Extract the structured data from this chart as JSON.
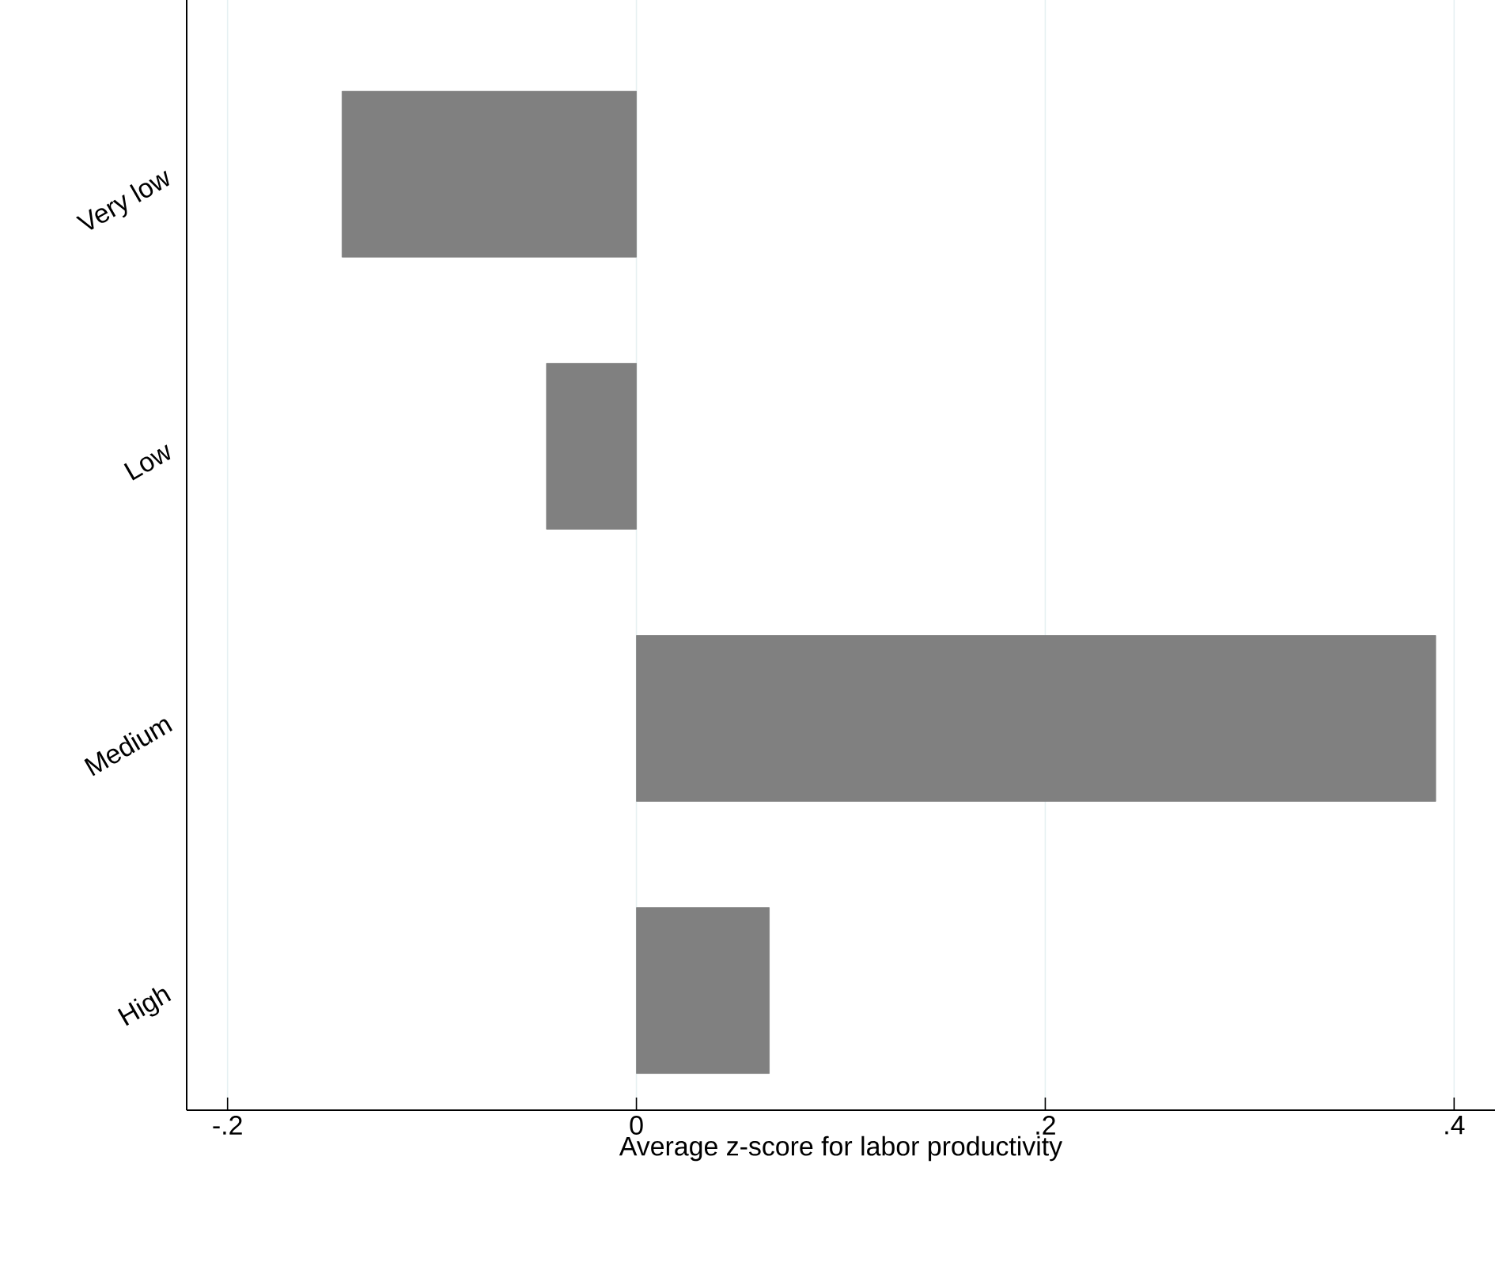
{
  "chart_data": {
    "type": "bar",
    "orientation": "horizontal",
    "xlabel": "Average z-score for labor productivity",
    "categories": [
      "Very low",
      "Low",
      "Medium",
      "High"
    ],
    "values": [
      -0.144,
      -0.044,
      0.391,
      0.065
    ],
    "color": "#808080",
    "xlim": [
      -0.22,
      0.42
    ],
    "xticks": [
      {
        "value": -0.2,
        "label": "-.2"
      },
      0,
      {
        "value": 0.2,
        "label": ".2"
      },
      {
        "value": 0.4,
        "label": ".4"
      }
    ],
    "grid": "x"
  }
}
